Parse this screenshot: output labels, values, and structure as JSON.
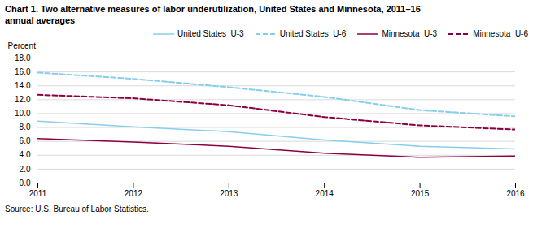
{
  "chart_data": {
    "type": "line",
    "title": "Chart 1. Two alternative measures of labor underutilization, United States and Minnesota, 2011–16",
    "subtitle": "annual averages",
    "y_label": "Percent",
    "source": "Source: U.S. Bureau of Labor Statistics.",
    "x": [
      2011,
      2012,
      2013,
      2014,
      2015,
      2016
    ],
    "series": [
      {
        "name": "United States  U-3",
        "color": "#87CEEB",
        "line_style": "solid",
        "values": [
          8.9,
          8.1,
          7.4,
          6.2,
          5.3,
          4.9
        ]
      },
      {
        "name": "United States  U-6",
        "color": "#87CEEB",
        "line_style": "dashed",
        "values": [
          15.9,
          15.0,
          13.8,
          12.4,
          10.5,
          9.6
        ]
      },
      {
        "name": "Minnesota  U-3",
        "color": "#8B0040",
        "line_style": "solid",
        "values": [
          6.4,
          5.9,
          5.3,
          4.3,
          3.7,
          3.9
        ]
      },
      {
        "name": "Minnesota  U-6",
        "color": "#8B0040",
        "line_style": "dashed",
        "values": [
          12.7,
          12.2,
          11.2,
          9.5,
          8.3,
          7.7
        ]
      }
    ],
    "xlim": [
      2011,
      2016
    ],
    "xticks": [
      2011,
      2012,
      2013,
      2014,
      2015,
      2016
    ],
    "ylim": [
      0,
      18
    ],
    "yticks": [
      {
        "value": 0,
        "label": "0.0"
      },
      {
        "value": 2,
        "label": "2.0"
      },
      {
        "value": 4,
        "label": "4.0"
      },
      {
        "value": 6,
        "label": "6.0"
      },
      {
        "value": 8,
        "label": "8.0"
      },
      {
        "value": 10,
        "label": "10.0"
      },
      {
        "value": 12,
        "label": "12.0"
      },
      {
        "value": 14,
        "label": "14.0"
      },
      {
        "value": 16,
        "label": "16.0"
      },
      {
        "value": 18,
        "label": "18.0"
      }
    ],
    "grid": true,
    "legend": "upper right"
  }
}
